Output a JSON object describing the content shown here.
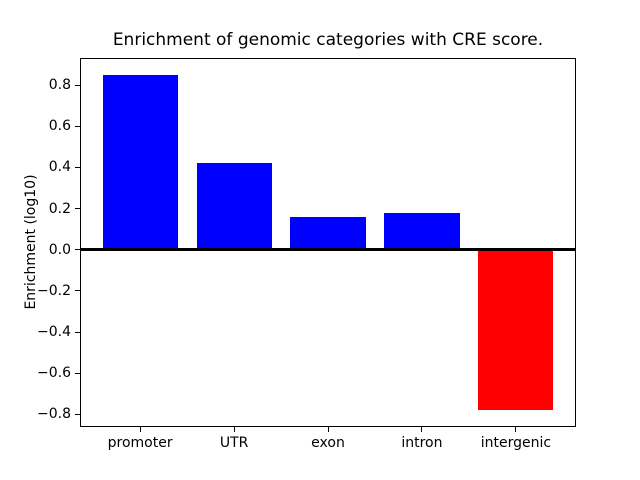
{
  "chart_data": {
    "type": "bar",
    "title": "Enrichment of genomic categories with CRE score.",
    "xlabel": "",
    "ylabel": "Enrichment (log10)",
    "categories": [
      "promoter",
      "UTR",
      "exon",
      "intron",
      "intergenic"
    ],
    "values": [
      0.85,
      0.42,
      0.16,
      0.18,
      -0.78
    ],
    "bar_colors": [
      "#0000ff",
      "#0000ff",
      "#0000ff",
      "#0000ff",
      "#ff0000"
    ],
    "positive_color": "#0000ff",
    "negative_color": "#ff0000",
    "bar_width_fraction": 0.8,
    "xlim": [
      -0.64,
      4.64
    ],
    "ylim": [
      -0.862,
      0.932
    ],
    "yticks": [
      0.8,
      0.6,
      0.4,
      0.2,
      0.0,
      -0.2,
      -0.4,
      -0.6,
      -0.8
    ],
    "ytick_labels": [
      "0.8",
      "0.6",
      "0.4",
      "0.2",
      "0.0",
      "−0.2",
      "−0.4",
      "−0.6",
      "−0.8"
    ],
    "zero_line": true,
    "grid": false,
    "legend_position": "none",
    "background_color": "#ffffff",
    "axis_color": "#000000"
  }
}
